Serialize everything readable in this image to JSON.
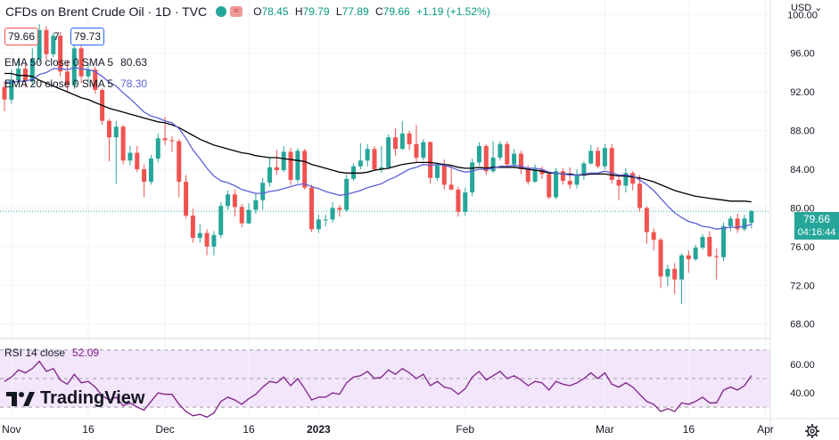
{
  "header": {
    "symbol": "CFDs on Brent Crude Oil · 1D · TVC",
    "open_label": "O",
    "open": "78.45",
    "high_label": "H",
    "high": "79.79",
    "low_label": "L",
    "low": "77.89",
    "close_label": "C",
    "close": "79.66",
    "change": "+1.19 (+1.52%)",
    "bid": "79.66",
    "spread": "7",
    "ask": "79.73"
  },
  "indicators": {
    "ema50_label": "EMA 50 close 0 SMA 5",
    "ema50_value": "80.63",
    "ema20_label": "EMA 20 close 0 SMA 5",
    "ema20_value": "78.30",
    "rsi_label": "RSI 14 close",
    "rsi_value": "52.09"
  },
  "axis": {
    "currency": "USD"
  },
  "price_label": {
    "price": "79.66",
    "countdown": "04:16:44"
  },
  "logo": {
    "text": "TradingView"
  },
  "colors": {
    "up": "#26a69a",
    "down": "#ef5350",
    "ema50": "#000000",
    "ema20": "#5b5fd6",
    "rsi": "#7e1f86",
    "rsi_band": "#f3e5fb"
  },
  "chart_data": {
    "type": "candlestick",
    "price_ticks": [
      100,
      96,
      92,
      88,
      84,
      80,
      76,
      72,
      68
    ],
    "price_range": [
      66.5,
      101.5
    ],
    "rsi_ticks": [
      60,
      40
    ],
    "rsi_range": [
      22,
      78
    ],
    "rsi_band": [
      30,
      70
    ],
    "x_labels": [
      "Nov",
      "16",
      "Dec",
      "16",
      "2023",
      "Feb",
      "Mar",
      "16",
      "Apr"
    ],
    "x_label_index": [
      1,
      12,
      23,
      35,
      45,
      66,
      86,
      98,
      109
    ],
    "candles": [
      [
        92.5,
        91.2,
        93.0,
        90.0
      ],
      [
        91.2,
        93.2,
        94.3,
        90.8
      ],
      [
        93.2,
        94.4,
        95.5,
        92.9
      ],
      [
        94.4,
        93.1,
        94.9,
        92.5
      ],
      [
        93.1,
        95.4,
        96.5,
        92.7
      ],
      [
        95.4,
        98.4,
        99.0,
        95.0
      ],
      [
        98.4,
        95.9,
        98.8,
        95.3
      ],
      [
        95.9,
        97.8,
        98.1,
        95.6
      ],
      [
        97.8,
        94.1,
        98.2,
        93.6
      ],
      [
        94.1,
        92.7,
        95.2,
        92.0
      ],
      [
        92.7,
        96.5,
        97.0,
        92.3
      ],
      [
        96.5,
        93.6,
        96.8,
        92.9
      ],
      [
        93.6,
        94.3,
        95.0,
        92.9
      ],
      [
        94.3,
        92.2,
        94.6,
        91.8
      ],
      [
        92.2,
        89.0,
        92.4,
        88.6
      ],
      [
        89.0,
        87.3,
        89.2,
        84.8
      ],
      [
        87.3,
        88.4,
        89.0,
        82.5
      ],
      [
        88.4,
        84.9,
        88.6,
        84.5
      ],
      [
        84.9,
        85.7,
        86.4,
        84.4
      ],
      [
        85.7,
        84.0,
        86.4,
        83.7
      ],
      [
        84.0,
        82.7,
        84.5,
        81.1
      ],
      [
        82.7,
        85.1,
        85.5,
        82.4
      ],
      [
        85.1,
        87.2,
        87.7,
        84.7
      ],
      [
        87.2,
        87.0,
        89.4,
        86.5
      ],
      [
        87.0,
        86.9,
        87.4,
        85.8
      ],
      [
        86.9,
        82.7,
        87.1,
        81.1
      ],
      [
        82.7,
        79.2,
        83.4,
        78.9
      ],
      [
        79.2,
        76.9,
        79.9,
        76.4
      ],
      [
        76.9,
        77.4,
        78.3,
        76.4
      ],
      [
        77.4,
        76.0,
        77.8,
        75.1
      ],
      [
        76.0,
        77.2,
        77.6,
        75.1
      ],
      [
        77.2,
        80.2,
        80.6,
        76.9
      ],
      [
        80.2,
        81.4,
        81.8,
        79.8
      ],
      [
        81.4,
        80.1,
        81.9,
        79.1
      ],
      [
        80.1,
        78.4,
        80.4,
        78.0
      ],
      [
        78.4,
        79.8,
        80.5,
        78.3
      ],
      [
        79.8,
        80.8,
        81.5,
        79.4
      ],
      [
        80.8,
        82.6,
        83.1,
        79.8
      ],
      [
        82.6,
        84.2,
        85.2,
        82.2
      ],
      [
        84.2,
        83.9,
        86.0,
        83.4
      ],
      [
        83.9,
        85.8,
        86.4,
        83.7
      ],
      [
        85.8,
        82.9,
        86.2,
        82.4
      ],
      [
        82.9,
        85.9,
        86.2,
        82.6
      ],
      [
        85.9,
        82.1,
        86.1,
        81.9
      ],
      [
        82.1,
        77.8,
        82.4,
        77.5
      ],
      [
        77.8,
        78.8,
        79.3,
        77.4
      ],
      [
        78.8,
        78.8,
        79.3,
        78.1
      ],
      [
        78.8,
        80.0,
        80.6,
        78.5
      ],
      [
        80.0,
        79.8,
        80.3,
        79.1
      ],
      [
        79.8,
        83.0,
        83.4,
        79.6
      ],
      [
        83.0,
        84.3,
        84.6,
        82.8
      ],
      [
        84.3,
        84.9,
        86.7,
        84.0
      ],
      [
        84.9,
        86.1,
        86.6,
        84.3
      ],
      [
        86.1,
        84.0,
        86.4,
        83.8
      ],
      [
        84.0,
        84.2,
        86.4,
        83.6
      ],
      [
        84.2,
        87.3,
        87.6,
        84.0
      ],
      [
        87.3,
        86.1,
        88.2,
        85.4
      ],
      [
        86.1,
        87.7,
        89.0,
        86.0
      ],
      [
        87.7,
        86.6,
        88.0,
        86.0
      ],
      [
        86.6,
        85.2,
        88.6,
        84.8
      ],
      [
        85.2,
        86.8,
        87.1,
        84.9
      ],
      [
        86.8,
        83.1,
        86.9,
        82.5
      ],
      [
        83.1,
        84.4,
        84.7,
        82.8
      ],
      [
        84.4,
        82.4,
        85.0,
        81.9
      ],
      [
        82.4,
        81.9,
        84.3,
        81.8
      ],
      [
        81.9,
        79.6,
        82.2,
        79.1
      ],
      [
        79.6,
        81.6,
        82.1,
        79.2
      ],
      [
        81.6,
        84.7,
        85.1,
        81.2
      ],
      [
        84.7,
        86.4,
        86.8,
        84.4
      ],
      [
        86.4,
        83.8,
        86.6,
        83.4
      ],
      [
        83.8,
        85.2,
        86.9,
        83.6
      ],
      [
        85.2,
        86.6,
        86.9,
        84.9
      ],
      [
        86.6,
        84.5,
        86.9,
        84.1
      ],
      [
        84.5,
        85.6,
        86.1,
        84.1
      ],
      [
        85.6,
        84.0,
        85.9,
        83.5
      ],
      [
        84.0,
        82.7,
        84.4,
        82.4
      ],
      [
        82.7,
        84.0,
        84.5,
        82.6
      ],
      [
        84.0,
        83.5,
        84.3,
        83.0
      ],
      [
        83.5,
        81.1,
        83.8,
        80.9
      ],
      [
        81.1,
        83.8,
        84.1,
        80.9
      ],
      [
        83.8,
        82.8,
        84.1,
        82.4
      ],
      [
        82.8,
        82.4,
        84.2,
        82.0
      ],
      [
        82.4,
        83.4,
        84.0,
        82.0
      ],
      [
        83.4,
        84.6,
        84.8,
        82.9
      ],
      [
        84.6,
        85.9,
        86.5,
        84.5
      ],
      [
        85.9,
        84.3,
        86.3,
        84.1
      ],
      [
        84.3,
        86.2,
        86.6,
        84.0
      ],
      [
        86.2,
        82.9,
        86.6,
        82.5
      ],
      [
        82.9,
        82.3,
        83.2,
        80.8
      ],
      [
        82.3,
        83.6,
        84.1,
        81.6
      ],
      [
        83.6,
        82.5,
        83.8,
        81.8
      ],
      [
        82.5,
        80.0,
        83.4,
        79.6
      ],
      [
        80.0,
        77.5,
        80.2,
        76.3
      ],
      [
        77.5,
        76.7,
        77.9,
        75.6
      ],
      [
        76.7,
        72.9,
        76.9,
        71.7
      ],
      [
        72.9,
        73.7,
        74.1,
        71.9
      ],
      [
        73.7,
        72.6,
        74.3,
        71.1
      ],
      [
        72.6,
        75.1,
        75.3,
        70.1
      ],
      [
        75.1,
        74.7,
        75.6,
        73.3
      ],
      [
        74.7,
        75.9,
        76.2,
        74.5
      ],
      [
        75.9,
        77.0,
        77.3,
        75.7
      ],
      [
        77.0,
        75.0,
        77.6,
        74.9
      ],
      [
        75.0,
        74.9,
        75.8,
        72.6
      ],
      [
        74.9,
        78.1,
        78.5,
        74.5
      ],
      [
        78.1,
        78.9,
        79.2,
        77.6
      ],
      [
        78.9,
        77.8,
        79.4,
        77.4
      ],
      [
        77.8,
        78.9,
        79.3,
        77.6
      ],
      [
        78.45,
        79.66,
        79.79,
        77.89
      ]
    ],
    "ema50": [
      93.9,
      93.9,
      93.7,
      93.7,
      93.6,
      93.2,
      92.9,
      92.6,
      92.3,
      92.0,
      91.7,
      91.4,
      91.2,
      90.9,
      90.6,
      90.3,
      90.1,
      89.9,
      89.7,
      89.5,
      89.3,
      89.1,
      88.9,
      88.8,
      88.6,
      88.3,
      87.9,
      87.5,
      87.1,
      86.8,
      86.5,
      86.3,
      86.1,
      85.9,
      85.7,
      85.6,
      85.4,
      85.3,
      85.2,
      85.2,
      85.1,
      85.0,
      84.9,
      84.8,
      84.5,
      84.3,
      84.1,
      83.9,
      83.7,
      83.6,
      83.6,
      83.6,
      83.7,
      83.9,
      84.0,
      84.1,
      84.3,
      84.5,
      84.6,
      84.7,
      84.7,
      84.7,
      84.6,
      84.5,
      84.4,
      84.2,
      84.1,
      84.1,
      84.2,
      84.1,
      84.2,
      84.2,
      84.2,
      84.2,
      84.1,
      84.0,
      83.9,
      83.8,
      83.6,
      83.6,
      83.5,
      83.5,
      83.4,
      83.4,
      83.5,
      83.5,
      83.5,
      83.4,
      83.3,
      83.3,
      83.2,
      83.1,
      82.9,
      82.7,
      82.4,
      82.1,
      81.8,
      81.6,
      81.4,
      81.2,
      81.1,
      81.0,
      80.9,
      80.8,
      80.7,
      80.7,
      80.7,
      80.63
    ],
    "ema20": [
      93.0,
      93.0,
      93.1,
      93.1,
      93.3,
      93.8,
      94.0,
      94.4,
      94.4,
      94.3,
      94.5,
      94.4,
      94.3,
      94.1,
      93.6,
      93.0,
      92.6,
      91.9,
      91.3,
      90.6,
      89.9,
      89.5,
      89.3,
      89.0,
      88.8,
      88.2,
      87.2,
      86.0,
      85.1,
      84.1,
      83.3,
      82.8,
      82.6,
      82.3,
      81.9,
      81.7,
      81.5,
      81.5,
      81.7,
      81.8,
      82.0,
      82.2,
      82.4,
      82.5,
      82.2,
      82.0,
      81.7,
      81.5,
      81.3,
      81.4,
      81.6,
      81.8,
      82.1,
      82.3,
      82.5,
      82.9,
      83.2,
      83.6,
      84.0,
      84.2,
      84.5,
      84.4,
      84.5,
      84.4,
      84.2,
      83.9,
      83.7,
      83.8,
      84.0,
      84.0,
      84.1,
      84.3,
      84.3,
      84.4,
      84.3,
      84.1,
      84.1,
      84.0,
      83.7,
      83.6,
      83.5,
      83.4,
      83.4,
      83.5,
      83.6,
      83.6,
      83.8,
      83.6,
      83.4,
      83.4,
      83.3,
      82.9,
      82.4,
      81.8,
      81.0,
      80.2,
      79.5,
      79.0,
      78.6,
      78.4,
      78.1,
      78.0,
      77.8,
      77.9,
      78.0,
      78.0,
      78.1,
      78.3
    ],
    "rsi": [
      48,
      51,
      56,
      54,
      57,
      62,
      55,
      57,
      49,
      46,
      53,
      47,
      48,
      44,
      38,
      35,
      37,
      31,
      33,
      30,
      28,
      34,
      40,
      39,
      39,
      32,
      27,
      24,
      25,
      23,
      26,
      34,
      37,
      35,
      32,
      36,
      39,
      44,
      48,
      47,
      51,
      45,
      50,
      43,
      35,
      37,
      37,
      40,
      39,
      47,
      51,
      52,
      55,
      50,
      51,
      56,
      53,
      57,
      54,
      50,
      53,
      45,
      48,
      44,
      43,
      39,
      43,
      51,
      55,
      49,
      52,
      55,
      50,
      52,
      49,
      45,
      48,
      47,
      42,
      48,
      46,
      45,
      47,
      50,
      54,
      50,
      54,
      46,
      44,
      47,
      44,
      39,
      34,
      32,
      27,
      29,
      27,
      33,
      32,
      34,
      37,
      33,
      33,
      42,
      44,
      42,
      45,
      52.09
    ]
  }
}
